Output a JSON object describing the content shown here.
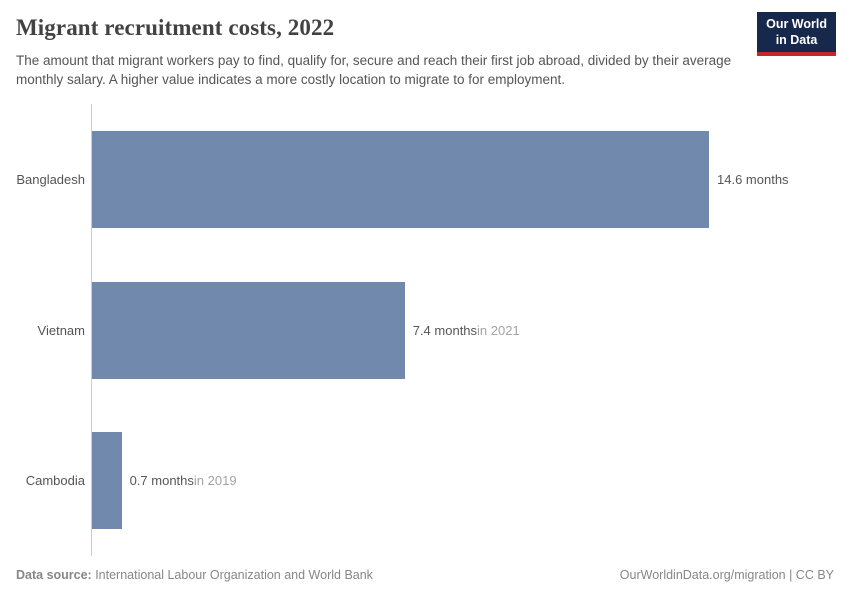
{
  "header": {
    "title": "Migrant recruitment costs, 2022",
    "subtitle": "The amount that migrant workers pay to find, qualify for, secure and reach their first job abroad, divided by their average monthly salary. A higher value indicates a more costly location to migrate to for employment.",
    "logo": {
      "line1": "Our World",
      "line2": "in Data"
    }
  },
  "chart_data": {
    "type": "bar",
    "orientation": "horizontal",
    "title": "Migrant recruitment costs, 2022",
    "unit": "months",
    "categories": [
      "Bangladesh",
      "Vietnam",
      "Cambodia"
    ],
    "values": [
      14.6,
      7.4,
      0.7
    ],
    "value_labels": [
      "14.6 months",
      "7.4 months",
      "0.7 months"
    ],
    "time_notes": [
      "",
      "in 2021",
      "in 2019"
    ],
    "xlabel": "",
    "ylabel": "",
    "xlim": [
      0,
      17.6
    ],
    "grid": false,
    "legend": "none"
  },
  "footer": {
    "datasource_label": "Data source:",
    "datasource_value": " International Labour Organization and World Bank",
    "attribution": "OurWorldinData.org/migration | CC BY"
  },
  "colors": {
    "bar": "#7189ad",
    "axis_line": "#cccccc",
    "value_label": "#565656",
    "time_note": "#a3a3a3",
    "logo_background": "#16294d",
    "logo_accent": "#c1272d"
  }
}
